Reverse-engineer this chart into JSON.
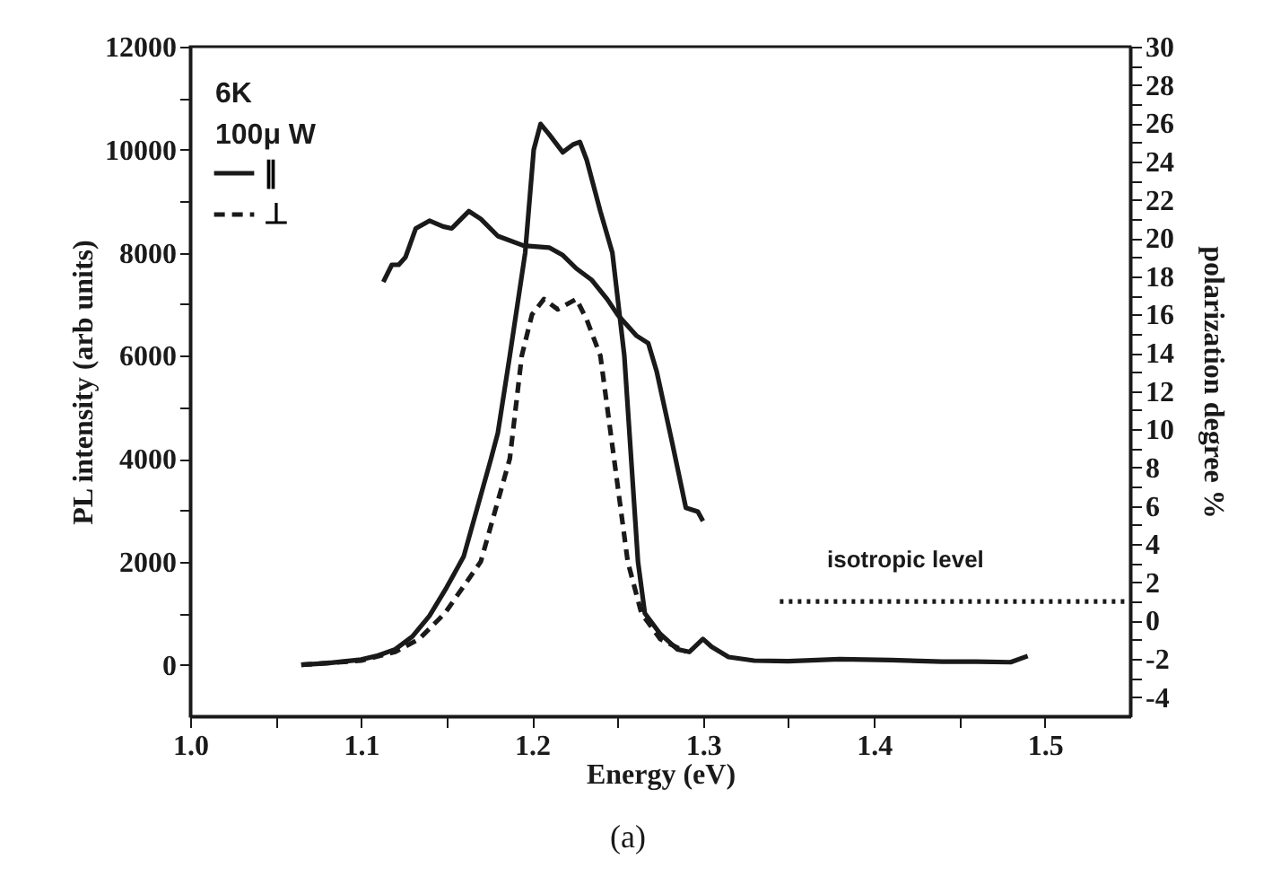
{
  "chart_data": {
    "type": "line",
    "xlabel": "Energy (eV)",
    "ylabel": "PL intensity (arb units)",
    "y2label": "polarization degree  %",
    "annotations": [
      "6K",
      "100μ W",
      "isotropic level",
      "(a)"
    ],
    "xlim": [
      1.0,
      1.55
    ],
    "xticks": [
      {
        "value": 1,
        "label": "1.0"
      },
      {
        "value": 1.05,
        "label": null
      },
      1.1,
      {
        "value": 1.15,
        "label": null
      },
      1.2,
      {
        "value": 1.25,
        "label": null
      },
      1.3,
      {
        "value": 1.35,
        "label": null
      },
      1.4,
      {
        "value": 1.45,
        "label": null
      },
      1.5
    ],
    "ylim": [
      -1000,
      12000
    ],
    "yticks": [
      0,
      {
        "value": 1000,
        "label": null
      },
      2000,
      {
        "value": 3000,
        "label": null
      },
      4000,
      {
        "value": 5000,
        "label": null
      },
      6000,
      {
        "value": 7000,
        "label": null
      },
      8000,
      {
        "value": 9000,
        "label": null
      },
      10000,
      {
        "value": 11000,
        "label": null
      },
      12000
    ],
    "y2lim": [
      -5,
      30
    ],
    "y2ticks": [
      -4,
      {
        "value": -3,
        "label": null
      },
      -2,
      {
        "value": -1,
        "label": null
      },
      0,
      {
        "value": 1,
        "label": null
      },
      2,
      {
        "value": 3,
        "label": null
      },
      4,
      {
        "value": 5,
        "label": null
      },
      6,
      {
        "value": 7,
        "label": null
      },
      8,
      {
        "value": 9,
        "label": null
      },
      10,
      {
        "value": 11,
        "label": null
      },
      12,
      {
        "value": 13,
        "label": null
      },
      14,
      {
        "value": 15,
        "label": null
      },
      16,
      {
        "value": 17,
        "label": null
      },
      18,
      {
        "value": 19,
        "label": null
      },
      20,
      {
        "value": 21,
        "label": null
      },
      22,
      {
        "value": 23,
        "label": null
      },
      24,
      {
        "value": 25,
        "label": null
      },
      26,
      {
        "value": 27,
        "label": null
      },
      28,
      {
        "value": 29,
        "label": null
      },
      30
    ],
    "grid": false,
    "legend": "top left",
    "marker": "none",
    "series": [
      {
        "name": "∥",
        "color": "#1a1a1a",
        "line_style": "solid",
        "x": [
          1.065,
          1.08,
          1.1,
          1.11,
          1.12,
          1.13,
          1.14,
          1.15,
          1.16,
          1.176,
          1.18,
          1.187,
          1.196,
          1.201,
          1.205,
          1.21,
          1.218,
          1.224,
          1.228,
          1.232,
          1.24,
          1.247,
          1.254,
          1.258,
          1.262,
          1.266,
          1.275,
          1.285,
          1.292,
          1.3,
          1.305,
          1.315,
          1.33,
          1.35,
          1.38,
          1.41,
          1.44,
          1.46,
          1.48,
          1.49
        ],
        "values": [
          0,
          30,
          100,
          180,
          300,
          550,
          950,
          1500,
          2100,
          4000,
          4500,
          6000,
          8000,
          10000,
          10500,
          10300,
          9950,
          10100,
          10150,
          9800,
          8800,
          8000,
          6000,
          4000,
          2000,
          1000,
          600,
          300,
          250,
          500,
          350,
          150,
          80,
          70,
          110,
          90,
          60,
          60,
          50,
          170
        ]
      },
      {
        "name": "⊥",
        "color": "#1a1a1a",
        "line_style": "dashed",
        "x": [
          1.065,
          1.1,
          1.12,
          1.134,
          1.149,
          1.17,
          1.187,
          1.194,
          1.2,
          1.207,
          1.215,
          1.226,
          1.232,
          1.24,
          1.248,
          1.256,
          1.264,
          1.275,
          1.29
        ],
        "values": [
          0,
          80,
          250,
          500,
          1000,
          2000,
          4000,
          6000,
          6800,
          7100,
          6900,
          7100,
          6700,
          6000,
          4000,
          2000,
          1000,
          500,
          250
        ]
      },
      {
        "color": "#1a1a1a",
        "line_style": "solid",
        "axis": "y2",
        "x": [
          1.113,
          1.118,
          1.122,
          1.126,
          1.132,
          1.14,
          1.148,
          1.153,
          1.163,
          1.17,
          1.18,
          1.195,
          1.21,
          1.218,
          1.226,
          1.235,
          1.244,
          1.25,
          1.261,
          1.268,
          1.273,
          1.282,
          1.29,
          1.297,
          1.3
        ],
        "values": [
          17.7,
          18.6,
          18.6,
          19.0,
          20.5,
          20.9,
          20.6,
          20.5,
          21.4,
          21.0,
          20.1,
          19.6,
          19.5,
          19.1,
          18.4,
          17.8,
          16.8,
          16.0,
          14.9,
          14.5,
          13.0,
          9.3,
          5.9,
          5.7,
          5.2
        ]
      },
      {
        "color": "#1a1a1a",
        "line_style": "dotted",
        "axis": "y2",
        "x": [
          1.345,
          1.55
        ],
        "values": [
          1,
          1
        ]
      }
    ]
  }
}
